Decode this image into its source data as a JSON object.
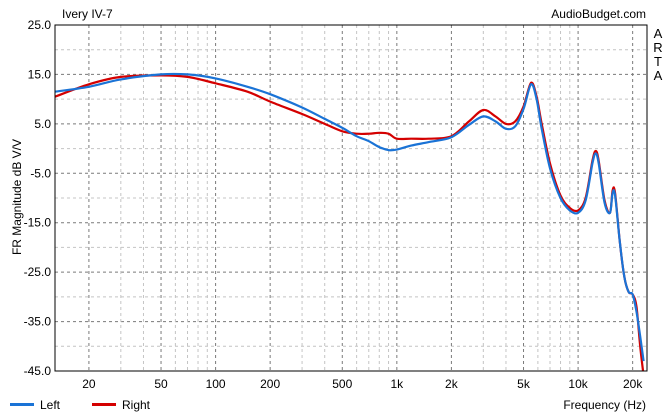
{
  "header": {
    "title": "Ivery IV-7",
    "source": "AudioBudget.com",
    "side_text": [
      "A",
      "R",
      "T",
      "A"
    ]
  },
  "chart_data": {
    "type": "line",
    "title": "Ivery IV-7",
    "xlabel": "Frequency (Hz)",
    "ylabel": "FR Magnitude dB V/V",
    "xscale": "log",
    "xlim": [
      13,
      24000
    ],
    "ylim": [
      -45,
      25
    ],
    "grid": true,
    "yticks": [
      25,
      15,
      5,
      -5,
      -15,
      -25,
      -35,
      -45
    ],
    "ytick_labels": [
      "25.0",
      "15.0",
      "5.0",
      "-5.0",
      "-15.0",
      "-25.0",
      "-35.0",
      "-45.0"
    ],
    "xticks": [
      20,
      50,
      100,
      200,
      500,
      1000,
      2000,
      5000,
      10000,
      20000
    ],
    "xtick_labels": [
      "20",
      "50",
      "100",
      "200",
      "500",
      "1k",
      "2k",
      "5k",
      "10k",
      "20k"
    ],
    "legend_position": "bottom-left",
    "series": [
      {
        "name": "Left",
        "color": "#1a73d6",
        "x": [
          13,
          20,
          30,
          50,
          70,
          100,
          150,
          200,
          300,
          400,
          500,
          600,
          700,
          800,
          900,
          1000,
          1200,
          1500,
          2000,
          2500,
          3000,
          3500,
          4000,
          4500,
          5000,
          5500,
          5900,
          6300,
          7000,
          8000,
          9000,
          10000,
          11000,
          12000,
          12500,
          13000,
          14000,
          15000,
          15500,
          16000,
          17000,
          18000,
          19000,
          20000,
          21000,
          22000,
          23000
        ],
        "y": [
          11.5,
          12.5,
          14.0,
          15.0,
          15.0,
          14.2,
          12.5,
          11.0,
          8.3,
          6.0,
          4.2,
          2.5,
          1.5,
          0.3,
          -0.3,
          -0.2,
          0.6,
          1.3,
          2.3,
          4.8,
          6.5,
          5.5,
          4.0,
          4.5,
          8.0,
          13.0,
          10.0,
          4.0,
          -4.0,
          -10.0,
          -12.5,
          -13.0,
          -10.5,
          -3.0,
          -1.0,
          -3.0,
          -11.0,
          -13.0,
          -9.0,
          -9.5,
          -19.0,
          -26.0,
          -29.0,
          -29.5,
          -33.0,
          -38.0,
          -43.0
        ]
      },
      {
        "name": "Right",
        "color": "#d40000",
        "x": [
          13,
          20,
          30,
          50,
          70,
          100,
          150,
          200,
          300,
          400,
          500,
          600,
          700,
          800,
          900,
          1000,
          1200,
          1500,
          2000,
          2500,
          3000,
          3500,
          4000,
          4500,
          5000,
          5500,
          5900,
          6300,
          7000,
          8000,
          9000,
          10000,
          11000,
          12000,
          12500,
          13000,
          14000,
          15000,
          15500,
          16000,
          17000,
          18000,
          19000,
          20000,
          21000,
          22000,
          23000
        ],
        "y": [
          10.5,
          13.0,
          14.5,
          14.8,
          14.5,
          13.2,
          11.5,
          9.5,
          7.0,
          5.0,
          3.5,
          3.0,
          3.0,
          3.2,
          3.0,
          2.0,
          2.0,
          2.0,
          2.5,
          5.5,
          7.8,
          6.5,
          5.0,
          5.5,
          8.5,
          13.3,
          10.5,
          5.0,
          -3.0,
          -9.5,
          -12.0,
          -12.5,
          -10.0,
          -2.5,
          -0.5,
          -2.5,
          -10.5,
          -13.0,
          -8.5,
          -9.0,
          -19.0,
          -26.0,
          -29.0,
          -29.5,
          -32.0,
          -40.0,
          -46.0
        ]
      }
    ]
  }
}
